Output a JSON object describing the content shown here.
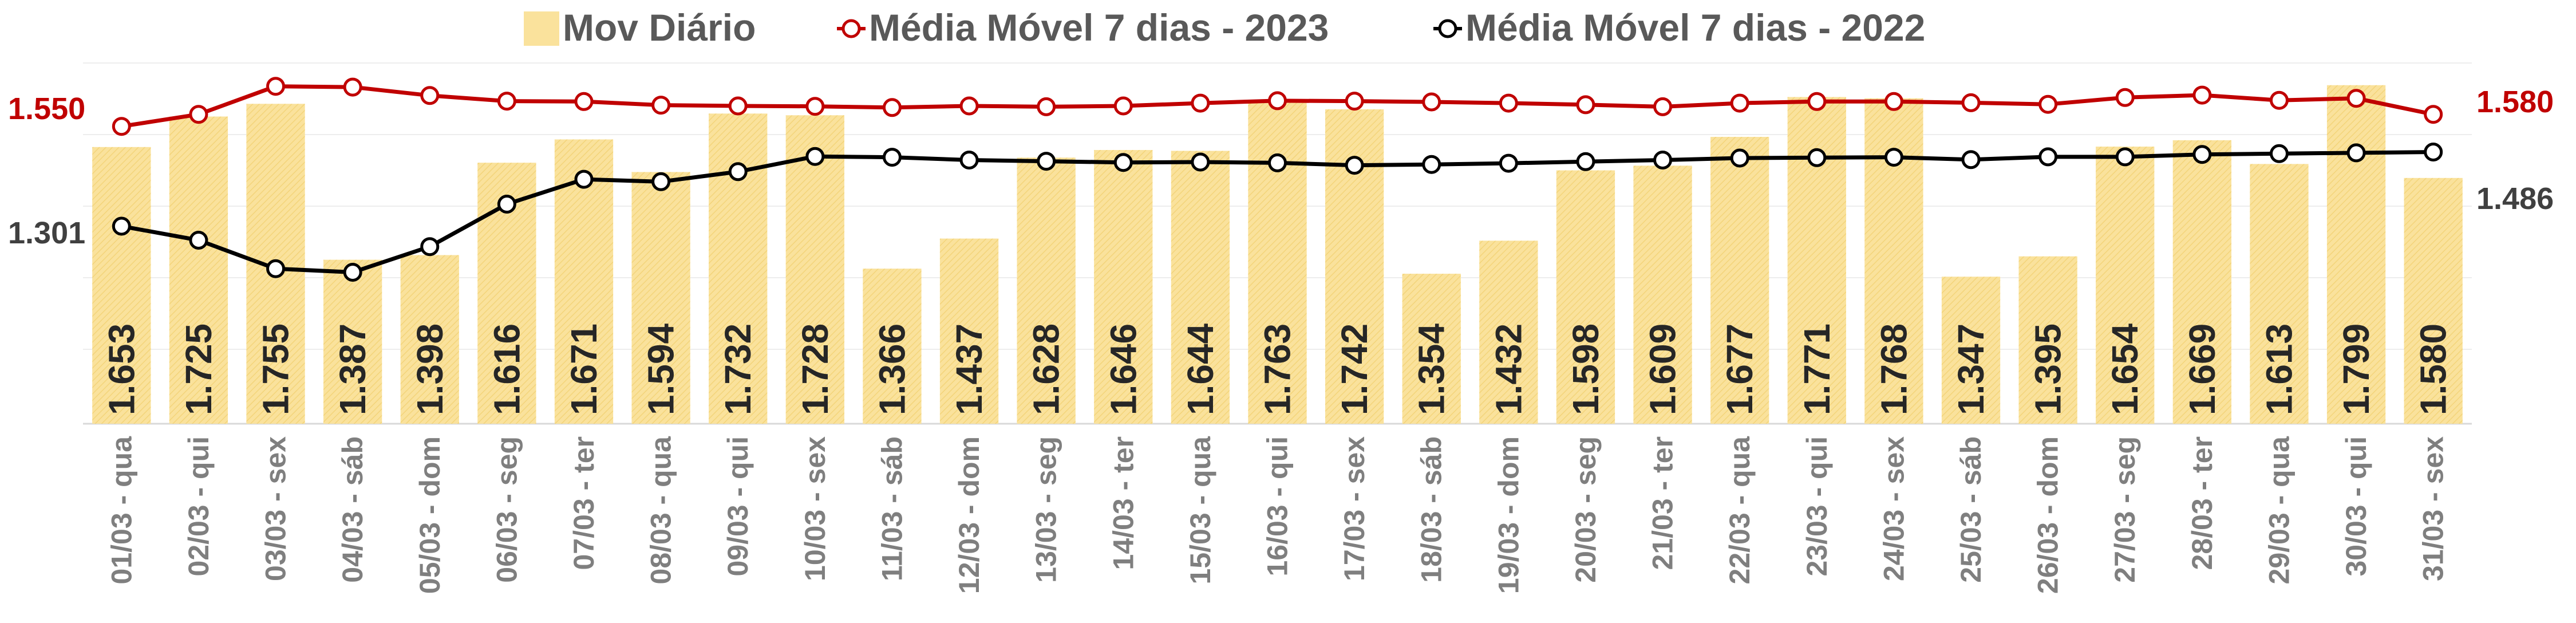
{
  "chart_data": {
    "type": "bar",
    "categories": [
      "01/03 - qua",
      "02/03 - qui",
      "03/03 - sex",
      "04/03 - sáb",
      "05/03 - dom",
      "06/03 - seg",
      "07/03 - ter",
      "08/03 - qua",
      "09/03 - qui",
      "10/03 - sex",
      "11/03 - sáb",
      "12/03 - dom",
      "13/03 - seg",
      "14/03 - ter",
      "15/03 - qua",
      "16/03 - qui",
      "17/03 - sex",
      "18/03 - sáb",
      "19/03 - dom",
      "20/03 - seg",
      "21/03 - ter",
      "22/03 - qua",
      "23/03 - qui",
      "24/03 - sex",
      "25/03 - sáb",
      "26/03 - dom",
      "27/03 - seg",
      "28/03 - ter",
      "29/03 - qua",
      "30/03 - qui",
      "31/03 - sex"
    ],
    "series": [
      {
        "name": "Mov Diário",
        "type": "bar",
        "color": "#FAE29C",
        "values": [
          1653,
          1725,
          1755,
          1387,
          1398,
          1616,
          1671,
          1594,
          1732,
          1728,
          1366,
          1437,
          1628,
          1646,
          1644,
          1763,
          1742,
          1354,
          1432,
          1598,
          1609,
          1677,
          1771,
          1768,
          1347,
          1395,
          1654,
          1669,
          1613,
          1799,
          1580
        ],
        "labels": [
          "1.653",
          "1.725",
          "1.755",
          "1.387",
          "1.398",
          "1.616",
          "1.671",
          "1.594",
          "1.732",
          "1.728",
          "1.366",
          "1.437",
          "1.628",
          "1.646",
          "1.644",
          "1.763",
          "1.742",
          "1.354",
          "1.432",
          "1.598",
          "1.609",
          "1.677",
          "1.771",
          "1.768",
          "1.347",
          "1.395",
          "1.654",
          "1.669",
          "1.613",
          "1.799",
          "1.580"
        ]
      },
      {
        "name": "Média Móvel 7 dias - 2023",
        "type": "line",
        "color": "#C00000",
        "values": [
          1550,
          1580,
          1650,
          1648,
          1627,
          1613,
          1612,
          1603,
          1601,
          1600,
          1597,
          1601,
          1599,
          1601,
          1608,
          1614,
          1613,
          1611,
          1608,
          1604,
          1599,
          1608,
          1612,
          1612,
          1609,
          1605,
          1622,
          1628,
          1615,
          1620,
          1580
        ],
        "start_label": "1.550",
        "end_label": "1.580"
      },
      {
        "name": "Média Móvel 7 dias - 2022",
        "type": "line",
        "color": "#000000",
        "values": [
          1301,
          1266,
          1195,
          1186,
          1250,
          1356,
          1418,
          1412,
          1437,
          1475,
          1473,
          1466,
          1463,
          1460,
          1461,
          1459,
          1453,
          1455,
          1458,
          1462,
          1466,
          1471,
          1472,
          1473,
          1467,
          1474,
          1474,
          1480,
          1482,
          1484,
          1486
        ],
        "start_label": "1.301",
        "end_label": "1.486"
      }
    ],
    "legend_position": "top",
    "grid": true
  }
}
